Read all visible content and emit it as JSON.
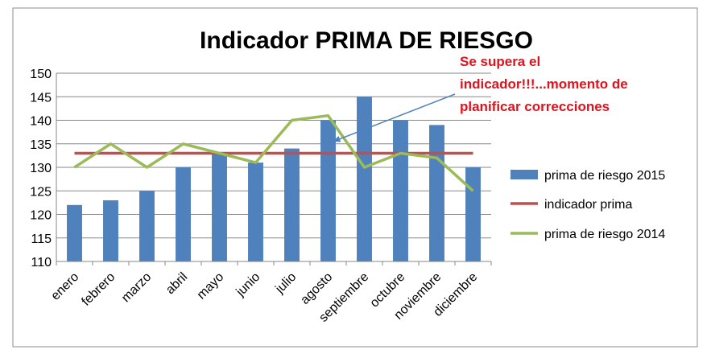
{
  "chart_data": {
    "type": "bar",
    "title": "Indicador PRIMA DE RIESGO",
    "categories": [
      "enero",
      "febrero",
      "marzo",
      "abril",
      "mayo",
      "junio",
      "julio",
      "agosto",
      "septiembre",
      "octubre",
      "noviembre",
      "diciembre"
    ],
    "series": [
      {
        "name": "prima de riesgo 2015",
        "kind": "bar",
        "color": "#4f81bd",
        "values": [
          122,
          123,
          125,
          130,
          133,
          131,
          134,
          140,
          145,
          140,
          139,
          130
        ]
      },
      {
        "name": "indicador prima",
        "kind": "line",
        "color": "#c0504d",
        "values": [
          133,
          133,
          133,
          133,
          133,
          133,
          133,
          133,
          133,
          133,
          133,
          133
        ]
      },
      {
        "name": "prima de riesgo 2014",
        "kind": "line",
        "color": "#9bbb59",
        "values": [
          130,
          135,
          130,
          135,
          133,
          131,
          140,
          141,
          130,
          133,
          132,
          125
        ]
      }
    ],
    "ylim": [
      110,
      150
    ],
    "yticks": [
      110,
      115,
      120,
      125,
      130,
      135,
      140,
      145,
      150
    ],
    "grid": true,
    "legend": "right",
    "annotation": {
      "lines": [
        "Se supera el",
        "indicador!!!...momento de",
        "planificar correcciones"
      ],
      "points_to": {
        "category": "agosto",
        "value": 137
      }
    }
  }
}
